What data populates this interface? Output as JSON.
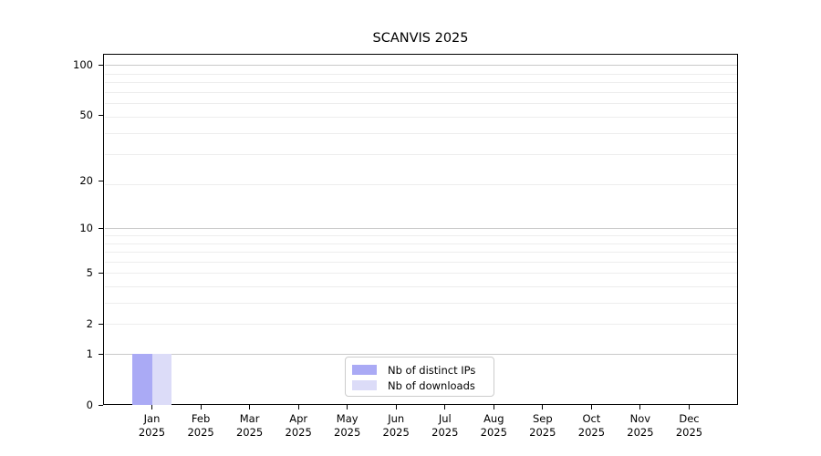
{
  "chart_data": {
    "type": "bar",
    "title": "SCANVIS 2025",
    "xlabel": "",
    "ylabel": "",
    "yscale": "log1p",
    "ylim": [
      0,
      117
    ],
    "yticks": [
      0,
      1,
      2,
      5,
      10,
      20,
      50,
      100
    ],
    "grid": {
      "major_values": [
        1,
        10,
        100
      ],
      "minor_values": [
        2,
        3,
        4,
        5,
        6,
        7,
        8,
        9,
        19,
        29,
        39,
        49,
        59,
        69,
        79,
        89
      ],
      "major_color": "#c9c9c9",
      "minor_color": "#ededed"
    },
    "categories": [
      "Jan",
      "Feb",
      "Mar",
      "Apr",
      "May",
      "Jun",
      "Jul",
      "Aug",
      "Sep",
      "Oct",
      "Nov",
      "Dec"
    ],
    "x_tick_line2": "2025",
    "series": [
      {
        "name": "Nb of distinct IPs",
        "color": "#aaaaf5",
        "values": [
          1,
          0,
          0,
          0,
          0,
          0,
          0,
          0,
          0,
          0,
          0,
          0
        ]
      },
      {
        "name": "Nb of downloads",
        "color": "#dcdcf8",
        "values": [
          1,
          0,
          0,
          0,
          0,
          0,
          0,
          0,
          0,
          0,
          0,
          0
        ]
      }
    ],
    "legend": {
      "position": "lower-center-inside"
    }
  },
  "colors": {
    "background": "#ffffff",
    "spine": "#000000",
    "text": "#000000"
  }
}
